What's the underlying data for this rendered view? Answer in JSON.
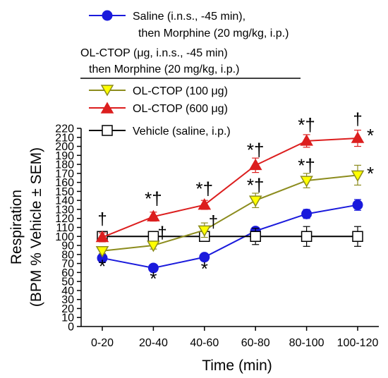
{
  "chart_data": {
    "type": "line",
    "title": "",
    "xlabel": "Time (min)",
    "ylabel_line1": "Respiration",
    "ylabel_line2": "(BPM % Vehicle ± SEM)",
    "categories": [
      "0-20",
      "20-40",
      "40-60",
      "60-80",
      "80-100",
      "100-120"
    ],
    "ylim": [
      0,
      220
    ],
    "yticks": [
      0,
      10,
      20,
      30,
      40,
      50,
      60,
      70,
      80,
      90,
      100,
      110,
      120,
      130,
      140,
      150,
      160,
      170,
      180,
      190,
      200,
      210,
      220
    ],
    "ytick_labels": [
      "0",
      "10",
      "20",
      "30",
      "40",
      "50",
      "60",
      "70",
      "80",
      "90",
      "100",
      "110",
      "120",
      "130",
      "140",
      "150",
      "160",
      "170",
      "180",
      "190",
      "200",
      "210",
      "220"
    ],
    "legend": {
      "saline_line1": "Saline (i.n.s., -45 min),",
      "saline_line2": "then Morphine (20 mg/kg, i.p.)",
      "group_line1": "OL-CTOP (μg, i.n.s., -45 min)",
      "group_line2": "then Morphine (20 mg/kg, i.p.)",
      "ctop100": "OL-CTOP (100 μg)",
      "ctop600": "OL-CTOP (600 μg)",
      "vehicle": "Vehicle (saline, i.p.)"
    },
    "series": [
      {
        "key": "saline",
        "color": "#1a1adc",
        "marker": "circle",
        "values": [
          76,
          65,
          77,
          106,
          125,
          135
        ],
        "errors": [
          5,
          4,
          4,
          4,
          5,
          6
        ]
      },
      {
        "key": "vehicle",
        "color": "#000000",
        "marker": "square",
        "values": [
          100,
          100,
          100,
          100,
          100,
          100
        ],
        "errors": [
          3,
          4,
          4,
          9,
          11,
          11
        ]
      },
      {
        "key": "ctop100",
        "color": "#8c8c1e",
        "fill": "#ffff00",
        "marker": "triangle-down",
        "values": [
          84,
          90,
          107,
          140,
          162,
          168
        ],
        "errors": [
          3,
          4,
          8,
          8,
          8,
          11
        ]
      },
      {
        "key": "ctop600",
        "color": "#dc1e1e",
        "marker": "triangle-up",
        "values": [
          99,
          122,
          135,
          179,
          206,
          209
        ],
        "errors": [
          5,
          5,
          5,
          8,
          7,
          9
        ]
      }
    ],
    "annotations": [
      {
        "cat": 0,
        "y": 60,
        "text": "*",
        "kind": "star"
      },
      {
        "cat": 0,
        "y": 113,
        "text": "†",
        "kind": "dagger"
      },
      {
        "cat": 1,
        "y": 46,
        "text": "*",
        "kind": "star"
      },
      {
        "cat": 1,
        "y": 135,
        "text": "*†",
        "kind": "star"
      },
      {
        "cat": 1,
        "y": 98,
        "text": "†",
        "kind": "dagger-right"
      },
      {
        "cat": 2,
        "y": 57,
        "text": "*",
        "kind": "star"
      },
      {
        "cat": 2,
        "y": 146,
        "text": "*†",
        "kind": "star"
      },
      {
        "cat": 2,
        "y": 110,
        "text": "†",
        "kind": "dagger-right"
      },
      {
        "cat": 3,
        "y": 189,
        "text": "*†",
        "kind": "star"
      },
      {
        "cat": 3,
        "y": 150,
        "text": "*†",
        "kind": "star"
      },
      {
        "cat": 4,
        "y": 217,
        "text": "*†",
        "kind": "star"
      },
      {
        "cat": 4,
        "y": 172,
        "text": "*†",
        "kind": "star"
      },
      {
        "cat": 5,
        "y": 224,
        "text": "†",
        "kind": "dagger"
      },
      {
        "cat": 5,
        "y": 205,
        "text": "*",
        "kind": "star-right"
      },
      {
        "cat": 5,
        "y": 163,
        "text": "*",
        "kind": "star-right"
      }
    ]
  }
}
